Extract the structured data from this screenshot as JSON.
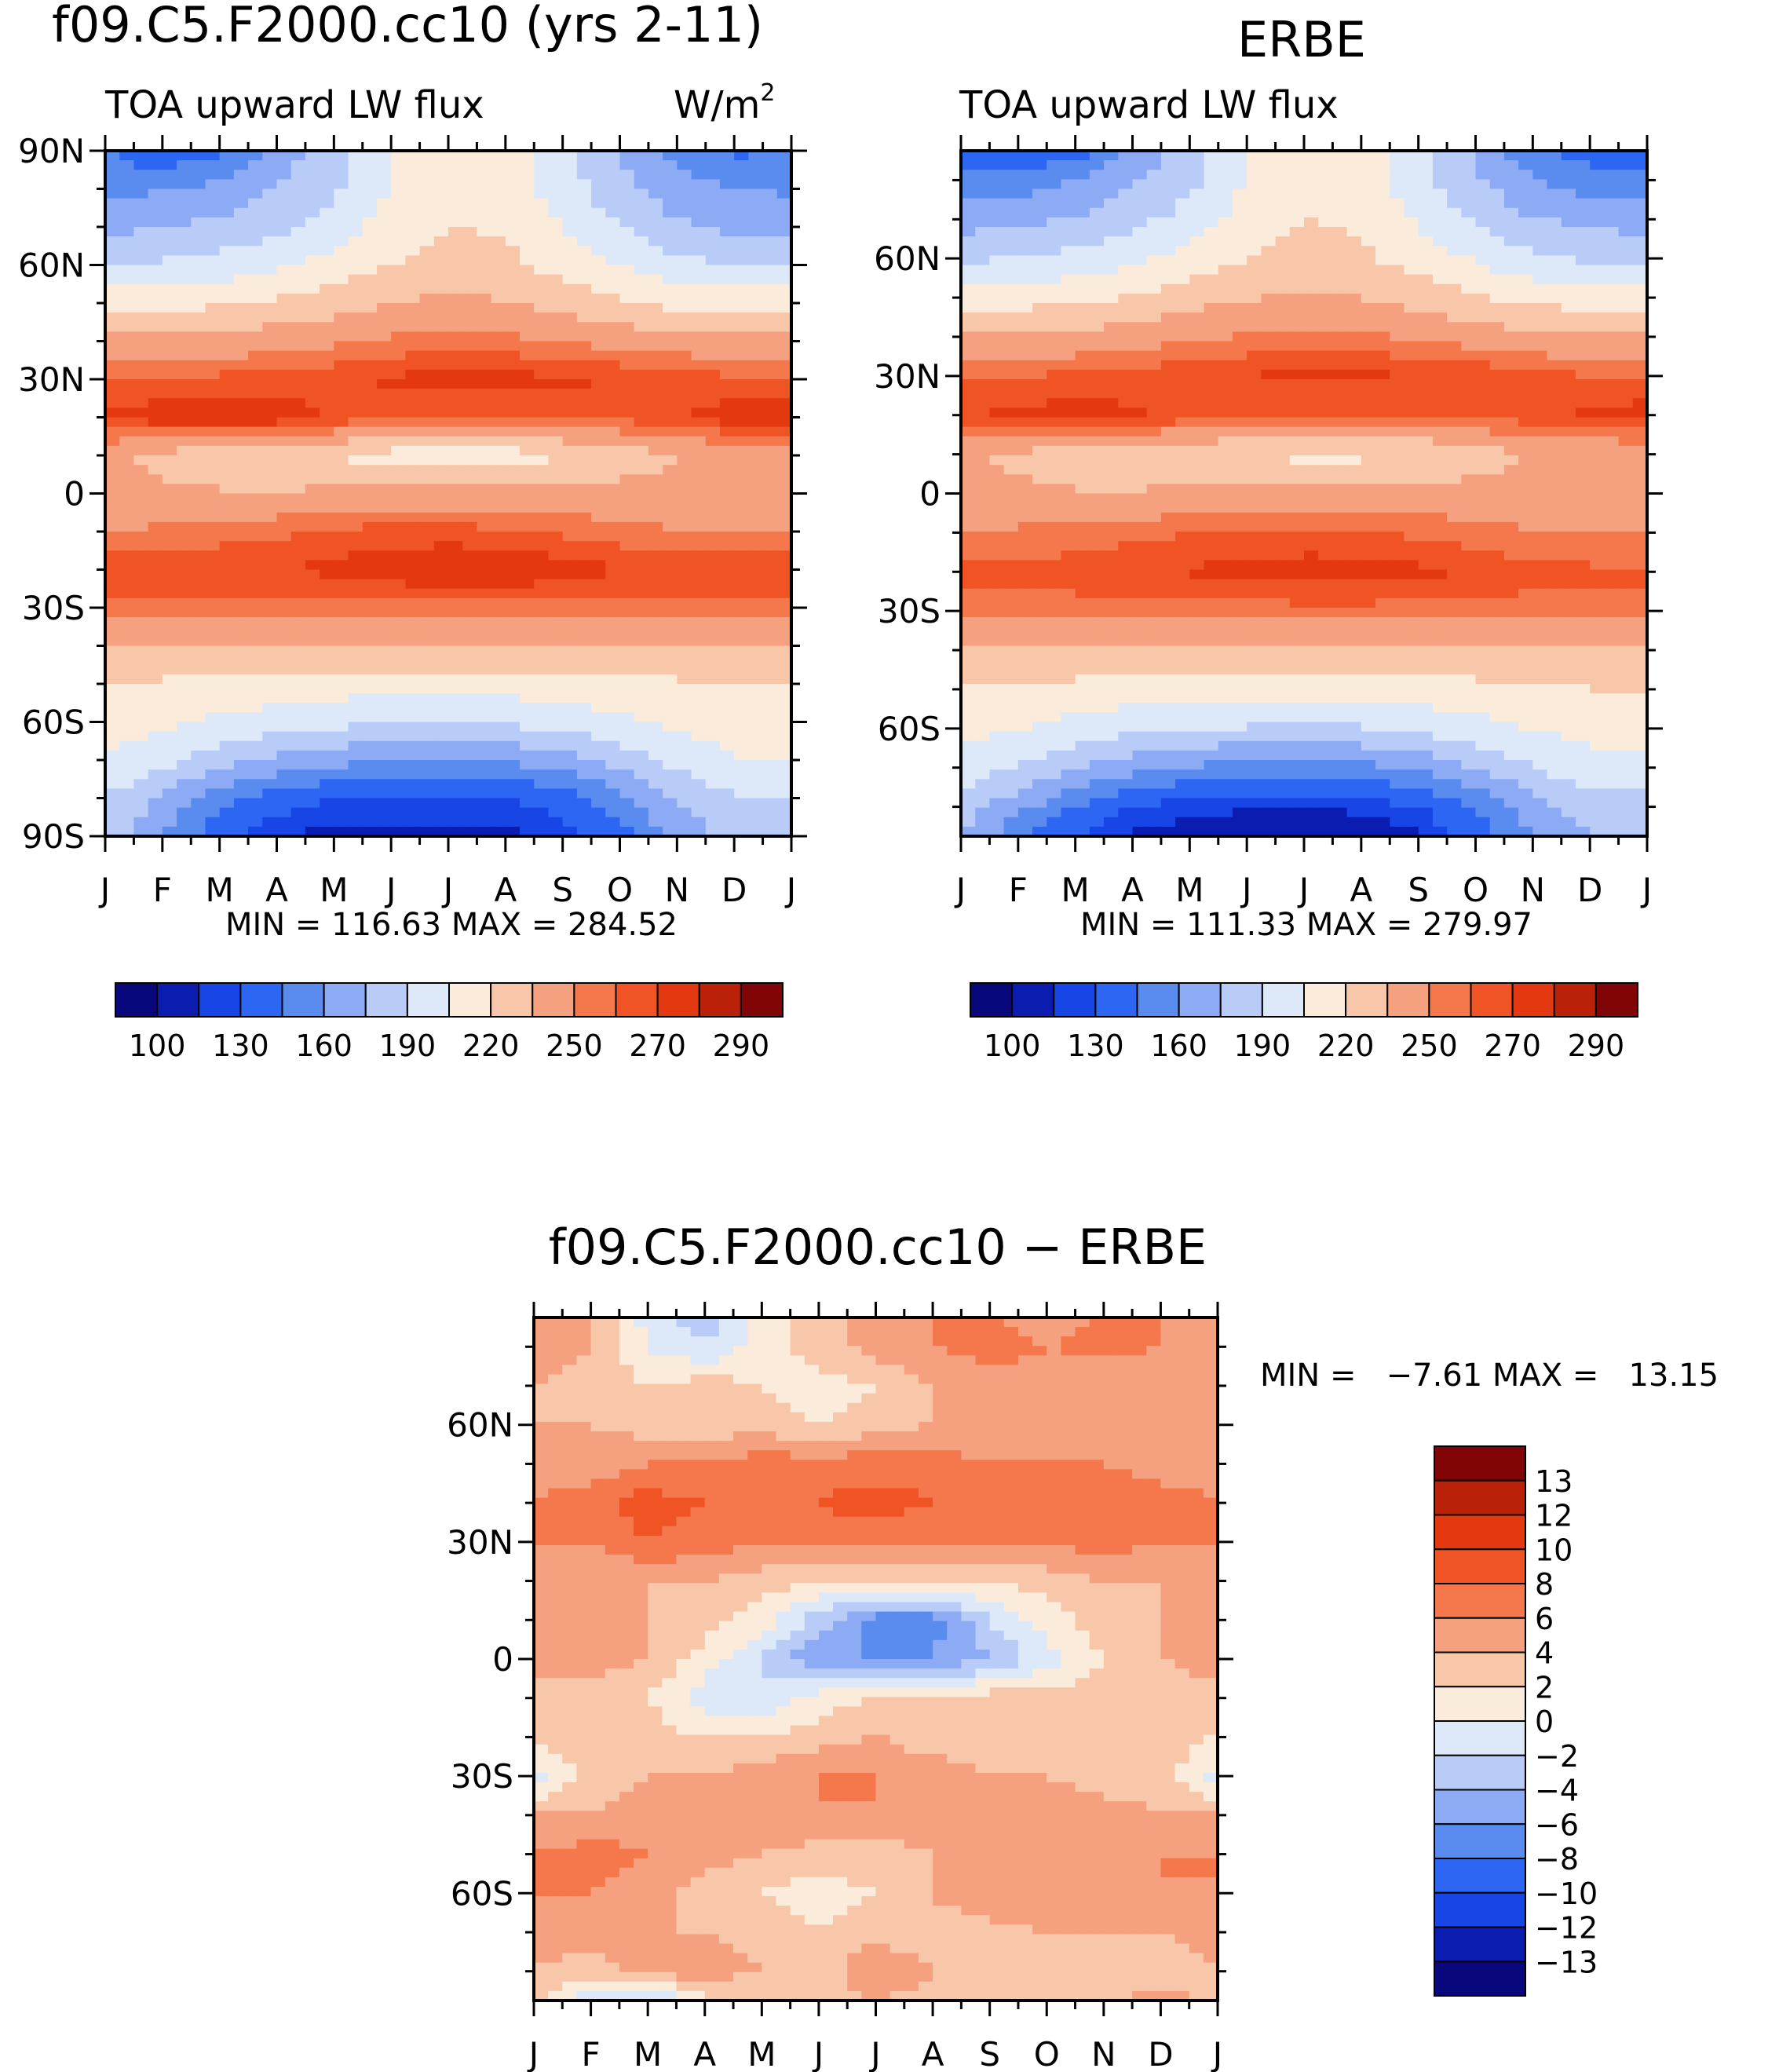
{
  "chart_data": [
    {
      "type": "heatmap",
      "title": "f09.C5.F2000.cc10 (yrs 2-11)",
      "subtitle": "TOA upward LW flux",
      "units": "W/m",
      "units_sup": "2",
      "months": [
        "J",
        "F",
        "M",
        "A",
        "M",
        "J",
        "J",
        "A",
        "S",
        "O",
        "N",
        "D",
        "J"
      ],
      "lat_ticks": [
        {
          "lat": 90,
          "label": "90N"
        },
        {
          "lat": 60,
          "label": "60N"
        },
        {
          "lat": 30,
          "label": "30N"
        },
        {
          "lat": 0,
          "label": "0"
        },
        {
          "lat": -30,
          "label": "30S"
        },
        {
          "lat": -60,
          "label": "60S"
        },
        {
          "lat": -90,
          "label": "90S"
        }
      ],
      "ylim": [
        -90,
        90
      ],
      "lat_nodes": [
        -90,
        -80,
        -70,
        -60,
        -50,
        -40,
        -30,
        -20,
        -10,
        0,
        10,
        20,
        30,
        40,
        50,
        60,
        70,
        80,
        90
      ],
      "values": [
        [
          185,
          160,
          135,
          120,
          117,
          117,
          117,
          117,
          122,
          140,
          165,
          182,
          185
        ],
        [
          190,
          172,
          152,
          138,
          130,
          127,
          126,
          128,
          138,
          155,
          175,
          188,
          190
        ],
        [
          205,
          195,
          182,
          172,
          165,
          162,
          161,
          163,
          170,
          182,
          196,
          205,
          205
        ],
        [
          212,
          208,
          202,
          198,
          194,
          192,
          191,
          192,
          196,
          202,
          208,
          212,
          212
        ],
        [
          220,
          218,
          216,
          214,
          212,
          212,
          212,
          212,
          214,
          216,
          218,
          220,
          220
        ],
        [
          234,
          234,
          234,
          234,
          234,
          234,
          234,
          234,
          234,
          234,
          234,
          234,
          234
        ],
        [
          258,
          258,
          258,
          256,
          256,
          256,
          256,
          256,
          256,
          256,
          256,
          258,
          258
        ],
        [
          266,
          267,
          268,
          270,
          273,
          277,
          281,
          281,
          276,
          270,
          267,
          266,
          266
        ],
        [
          250,
          252,
          255,
          258,
          262,
          264,
          264,
          262,
          258,
          254,
          251,
          250,
          250
        ],
        [
          240,
          238,
          236,
          236,
          238,
          240,
          240,
          240,
          240,
          240,
          240,
          240,
          240
        ],
        [
          238,
          230,
          226,
          224,
          218,
          214,
          212,
          212,
          218,
          226,
          234,
          238,
          238
        ],
        [
          272,
          277,
          280,
          277,
          268,
          262,
          260,
          260,
          262,
          264,
          268,
          276,
          281
        ],
        [
          260,
          262,
          263,
          264,
          267,
          272,
          274,
          274,
          272,
          270,
          268,
          262,
          260
        ],
        [
          238,
          238,
          240,
          244,
          248,
          252,
          254,
          253,
          249,
          244,
          240,
          238,
          238
        ],
        [
          214,
          214,
          218,
          222,
          228,
          235,
          238,
          236,
          230,
          222,
          216,
          214,
          214
        ],
        [
          190,
          192,
          196,
          202,
          210,
          220,
          226,
          224,
          214,
          204,
          194,
          190,
          190
        ],
        [
          170,
          175,
          178,
          186,
          196,
          212,
          220,
          218,
          204,
          190,
          178,
          172,
          170
        ],
        [
          158,
          158,
          165,
          176,
          188,
          205,
          215,
          212,
          198,
          180,
          165,
          160,
          158
        ],
        [
          145,
          132,
          142,
          166,
          185,
          205,
          215,
          214,
          195,
          175,
          155,
          142,
          145
        ]
      ],
      "min_max_text": "MIN = 116.63 MAX = 284.52",
      "colorbar_labels": [
        "100",
        "130",
        "160",
        "190",
        "220",
        "250",
        "270",
        "290"
      ],
      "colors": [
        "#08077c",
        "#0b1cb1",
        "#1845e6",
        "#2d66f2",
        "#5a8cf0",
        "#8daaf5",
        "#b9ccf7",
        "#dde9f8",
        "#fbebdb",
        "#f8c7aa",
        "#f5a180",
        "#f4784c",
        "#f15424",
        "#e43810",
        "#bb2109",
        "#810506"
      ],
      "levels": [
        90,
        110,
        120,
        130,
        145,
        160,
        175,
        190,
        205,
        220,
        235,
        250,
        260,
        270,
        280,
        290
      ]
    },
    {
      "type": "heatmap",
      "title": "ERBE",
      "subtitle": "TOA upward LW flux",
      "months": [
        "J",
        "F",
        "M",
        "A",
        "M",
        "J",
        "J",
        "A",
        "S",
        "O",
        "N",
        "D",
        "J"
      ],
      "lat_ticks": [
        {
          "lat": 60,
          "label": "60N"
        },
        {
          "lat": 30,
          "label": "30N"
        },
        {
          "lat": 0,
          "label": "0"
        },
        {
          "lat": -30,
          "label": "30S"
        },
        {
          "lat": -60,
          "label": "60S"
        }
      ],
      "ylim": [
        -87.5,
        87.5
      ],
      "lat_nodes": [
        -87.5,
        -80,
        -70,
        -60,
        -50,
        -40,
        -30,
        -20,
        -10,
        0,
        10,
        20,
        30,
        40,
        50,
        60,
        70,
        80,
        87.5
      ],
      "values": [
        [
          175,
          150,
          130,
          118,
          113,
          112,
          112,
          113,
          118,
          135,
          158,
          175,
          175
        ],
        [
          182,
          165,
          145,
          130,
          124,
          121,
          120,
          122,
          130,
          148,
          168,
          182,
          182
        ],
        [
          200,
          190,
          176,
          165,
          158,
          155,
          154,
          156,
          164,
          176,
          190,
          200,
          200
        ],
        [
          210,
          206,
          200,
          195,
          191,
          189,
          188,
          189,
          193,
          200,
          206,
          210,
          210
        ],
        [
          220,
          218,
          215,
          213,
          211,
          211,
          211,
          211,
          213,
          215,
          218,
          220,
          220
        ],
        [
          234,
          234,
          234,
          234,
          234,
          234,
          234,
          234,
          234,
          234,
          234,
          234,
          234
        ],
        [
          256,
          256,
          256,
          256,
          256,
          256,
          256,
          256,
          256,
          256,
          256,
          256,
          256
        ],
        [
          262,
          263,
          265,
          268,
          271,
          274,
          276,
          276,
          273,
          268,
          264,
          262,
          262
        ],
        [
          250,
          252,
          254,
          257,
          260,
          262,
          262,
          261,
          258,
          254,
          251,
          250,
          250
        ],
        [
          240,
          238,
          236,
          236,
          238,
          240,
          240,
          240,
          240,
          240,
          240,
          240,
          240
        ],
        [
          238,
          232,
          228,
          226,
          222,
          218,
          216,
          216,
          220,
          228,
          235,
          238,
          238
        ],
        [
          268,
          273,
          275,
          272,
          266,
          262,
          260,
          260,
          261,
          263,
          266,
          272,
          276
        ],
        [
          258,
          260,
          262,
          264,
          267,
          270,
          272,
          272,
          270,
          268,
          265,
          260,
          258
        ],
        [
          236,
          237,
          239,
          243,
          247,
          251,
          253,
          252,
          248,
          243,
          239,
          236,
          236
        ],
        [
          212,
          213,
          216,
          221,
          228,
          234,
          237,
          235,
          229,
          221,
          215,
          212,
          212
        ],
        [
          188,
          190,
          195,
          201,
          210,
          219,
          225,
          223,
          213,
          203,
          193,
          188,
          188
        ],
        [
          168,
          172,
          176,
          185,
          196,
          212,
          220,
          218,
          203,
          188,
          176,
          170,
          168
        ],
        [
          150,
          152,
          160,
          172,
          186,
          205,
          215,
          212,
          196,
          177,
          160,
          152,
          150
        ],
        [
          140,
          130,
          138,
          162,
          184,
          205,
          215,
          213,
          194,
          172,
          150,
          138,
          140
        ]
      ],
      "min_max_text": "MIN = 111.33 MAX = 279.97",
      "colorbar_labels": [
        "100",
        "130",
        "160",
        "190",
        "220",
        "250",
        "270",
        "290"
      ],
      "colors": [
        "#08077c",
        "#0b1cb1",
        "#1845e6",
        "#2d66f2",
        "#5a8cf0",
        "#8daaf5",
        "#b9ccf7",
        "#dde9f8",
        "#fbebdb",
        "#f8c7aa",
        "#f5a180",
        "#f4784c",
        "#f15424",
        "#e43810",
        "#bb2109",
        "#810506"
      ],
      "levels": [
        90,
        110,
        120,
        130,
        145,
        160,
        175,
        190,
        205,
        220,
        235,
        250,
        260,
        270,
        280,
        290
      ]
    },
    {
      "type": "heatmap",
      "title": "f09.C5.F2000.cc10 − ERBE",
      "months": [
        "J",
        "F",
        "M",
        "A",
        "M",
        "J",
        "J",
        "A",
        "S",
        "O",
        "N",
        "D",
        "J"
      ],
      "lat_ticks": [
        {
          "lat": 60,
          "label": "60N"
        },
        {
          "lat": 30,
          "label": "30N"
        },
        {
          "lat": 0,
          "label": "0"
        },
        {
          "lat": -30,
          "label": "30S"
        },
        {
          "lat": -60,
          "label": "60S"
        }
      ],
      "ylim": [
        -87.5,
        87.5
      ],
      "lat_nodes": [
        -87.5,
        -80,
        -70,
        -60,
        -50,
        -40,
        -30,
        -20,
        -10,
        0,
        10,
        20,
        30,
        40,
        50,
        60,
        70,
        80,
        87.5
      ],
      "values": [
        [
          3,
          -2,
          -3,
          2,
          2,
          3,
          4,
          3,
          2,
          2,
          3,
          5,
          3
        ],
        [
          4,
          3,
          5,
          5,
          4,
          3,
          6,
          4,
          3,
          3,
          4,
          3,
          4
        ],
        [
          5,
          5,
          4,
          4,
          3,
          2,
          3,
          3,
          3,
          4,
          4,
          4,
          5
        ],
        [
          6,
          6,
          5,
          3,
          2,
          1,
          2,
          4,
          6,
          6,
          5,
          6,
          6
        ],
        [
          6,
          7,
          6,
          5,
          4,
          3,
          3,
          4,
          5,
          6,
          6,
          6,
          6
        ],
        [
          4,
          4,
          5,
          5,
          6,
          6,
          6,
          5,
          4,
          5,
          5,
          4,
          4
        ],
        [
          -1,
          3,
          4,
          4,
          5,
          6,
          6,
          5,
          4,
          4,
          3,
          3,
          -1
        ],
        [
          2,
          4,
          3,
          2,
          2,
          3,
          4,
          3,
          3,
          3,
          3,
          3,
          2
        ],
        [
          3,
          3,
          2,
          -1,
          -2,
          1,
          2,
          2,
          3,
          3,
          3,
          3,
          3
        ],
        [
          5,
          5,
          4,
          1,
          -2,
          -6,
          -6,
          -6,
          -4,
          -1,
          2,
          4,
          5
        ],
        [
          4,
          4,
          4,
          3,
          1,
          -3,
          -7,
          -7,
          -2,
          1,
          3,
          4,
          4
        ],
        [
          5,
          5,
          4,
          4,
          3,
          2,
          2,
          2,
          2,
          3,
          4,
          4,
          5
        ],
        [
          6,
          6,
          8,
          7,
          6,
          7,
          7,
          6,
          6,
          6,
          7,
          6,
          6
        ],
        [
          6,
          7,
          9,
          8,
          7,
          8,
          9,
          8,
          7,
          8,
          8,
          7,
          6
        ],
        [
          5,
          5,
          6,
          6,
          7,
          7,
          7,
          7,
          6,
          6,
          6,
          5,
          5
        ],
        [
          4,
          4,
          3,
          3,
          3,
          2,
          3,
          4,
          5,
          5,
          5,
          4,
          4
        ],
        [
          4,
          3,
          2,
          3,
          2,
          1,
          2,
          4,
          5,
          5,
          4,
          4,
          4
        ],
        [
          5,
          4,
          0,
          -2,
          1,
          3,
          5,
          6,
          7,
          6,
          7,
          6,
          5
        ],
        [
          6,
          4,
          -1,
          -3,
          1,
          3,
          5,
          6,
          6,
          5,
          6,
          6,
          6
        ]
      ],
      "min_max_text": "MIN =   −7.61 MAX =   13.15",
      "colorbar_labels": [
        "13",
        "12",
        "10",
        "8",
        "6",
        "4",
        "2",
        "0",
        "−2",
        "−4",
        "−6",
        "−8",
        "−10",
        "−12",
        "−13"
      ],
      "colors": [
        "#08077c",
        "#0b1cb1",
        "#1845e6",
        "#2d66f2",
        "#5a8cf0",
        "#8daaf5",
        "#b9ccf7",
        "#dde9f8",
        "#fbebdb",
        "#f8c7aa",
        "#f5a180",
        "#f4784c",
        "#f15424",
        "#e43810",
        "#bb2109",
        "#810506"
      ],
      "levels": [
        -20,
        -13,
        -12,
        -10,
        -8,
        -6,
        -4,
        -2,
        0,
        2,
        4,
        6,
        8,
        10,
        12,
        13
      ]
    }
  ]
}
